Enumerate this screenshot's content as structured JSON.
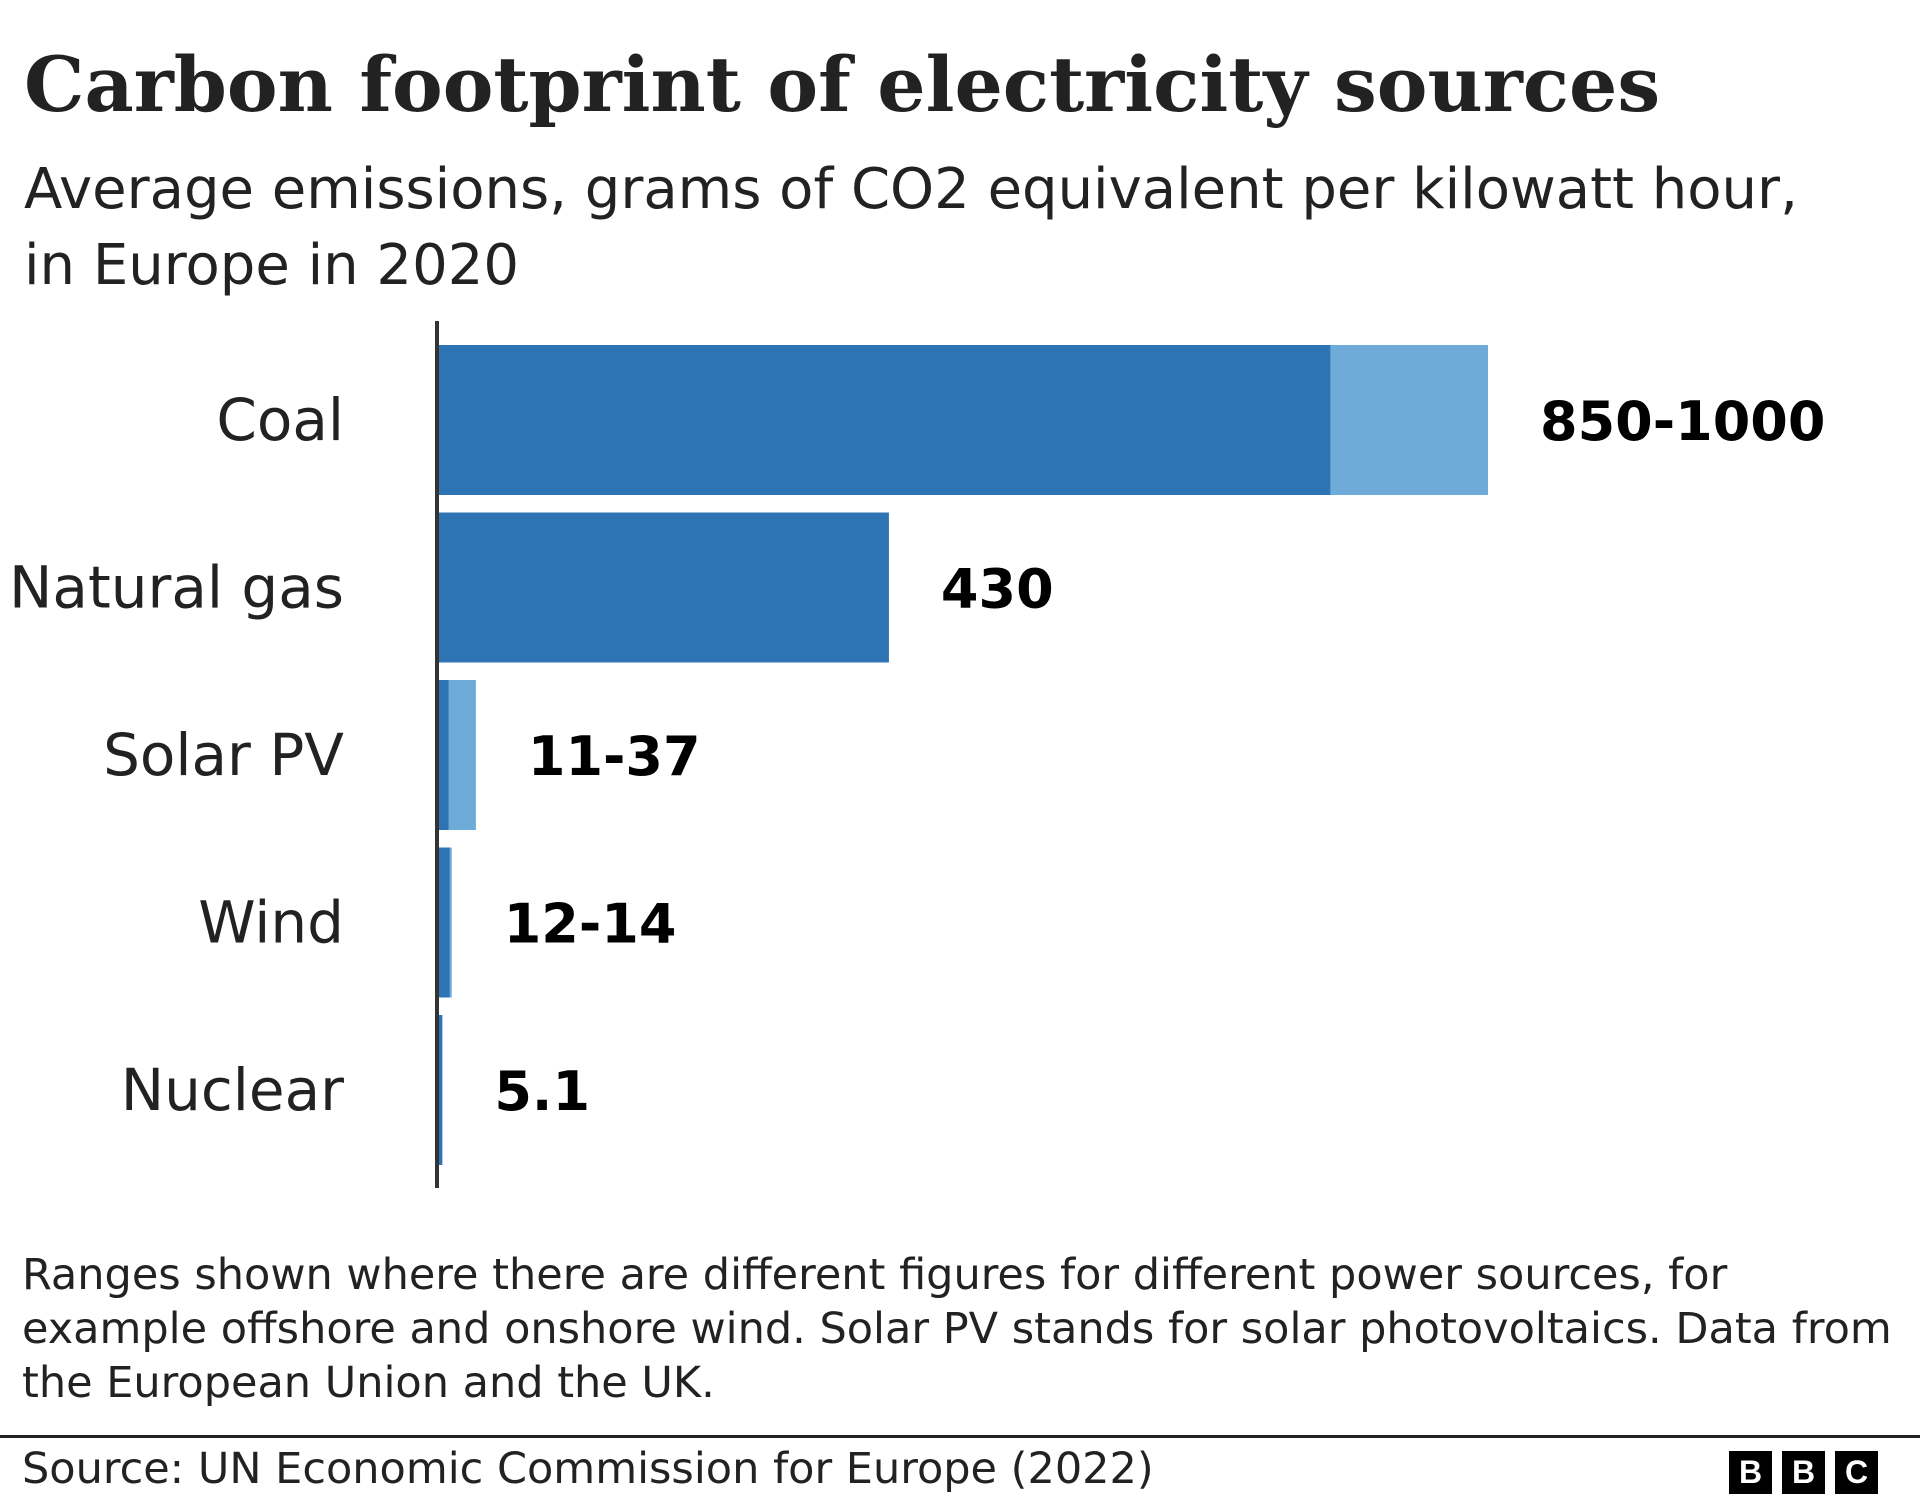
{
  "chart_data": {
    "type": "bar",
    "orientation": "horizontal",
    "title": "Carbon footprint of electricity sources",
    "subtitle": "Average emissions, grams of CO2 equivalent per kilowatt hour, in Europe in 2020",
    "categories": [
      "Coal",
      "Natural gas",
      "Solar PV",
      "Wind",
      "Nuclear"
    ],
    "series": [
      {
        "values_low": [
          850,
          430,
          11,
          12,
          5.1
        ],
        "values_high": [
          1000,
          430,
          37,
          14,
          5.1
        ]
      }
    ],
    "data_labels": [
      "850-1000",
      "430",
      "11-37",
      "12-14",
      "5.1"
    ],
    "xlim": [
      0,
      1000
    ],
    "grid": false,
    "colors": {
      "low": "#2e74b5",
      "range": "#6fabd9",
      "axis": "#333333"
    }
  },
  "footnote": "Ranges shown where there are different figures for different power sources, for example offshore and onshore wind. Solar PV stands for solar photovoltaics. Data from the European Union and the UK.",
  "source": "Source: UN Economic Commission for Europe (2022)",
  "logo": {
    "letters": [
      "B",
      "B",
      "C"
    ]
  }
}
